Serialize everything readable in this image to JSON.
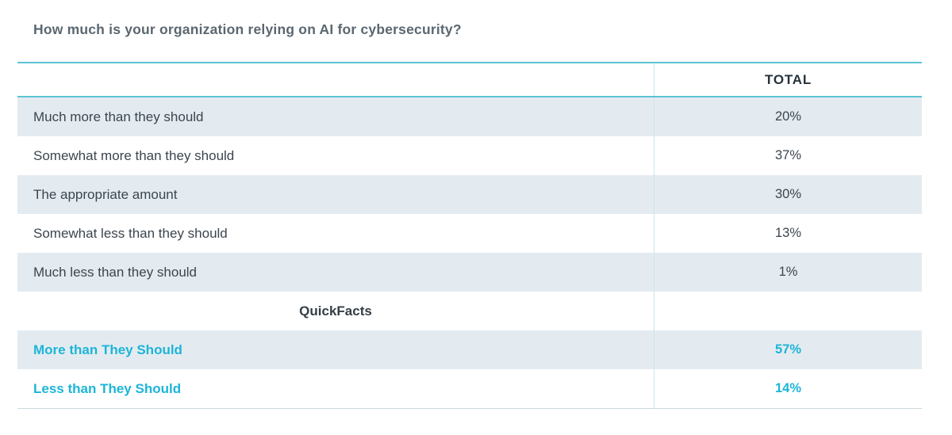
{
  "title": "How much is your organization relying on AI for cybersecurity?",
  "table": {
    "header": {
      "label": "",
      "total": "TOTAL"
    },
    "rows": [
      {
        "label": "Much more than they should",
        "value": "20%",
        "type": "data"
      },
      {
        "label": "Somewhat more than they should",
        "value": "37%",
        "type": "data"
      },
      {
        "label": "The appropriate amount",
        "value": "30%",
        "type": "data"
      },
      {
        "label": "Somewhat less than they should",
        "value": "13%",
        "type": "data"
      },
      {
        "label": "Much less than they should",
        "value": "1%",
        "type": "data"
      },
      {
        "label": "QuickFacts",
        "value": "",
        "type": "section"
      },
      {
        "label": "More than They Should",
        "value": "57%",
        "type": "highlight"
      },
      {
        "label": "Less than They Should",
        "value": "14%",
        "type": "highlight"
      }
    ]
  },
  "colors": {
    "accent_teal_border": "#5cc3d4",
    "column_divider": "#c9e6ee",
    "bottom_border": "#ccd8de",
    "row_shade": "#e4ebf0",
    "highlight_cyan": "#1cb5d8",
    "title_text": "#5b6770",
    "body_text": "#3b454e",
    "header_text": "#26333d"
  },
  "chart_data": {
    "type": "table",
    "title": "How much is your organization relying on AI for cybersecurity?",
    "columns": [
      "",
      "TOTAL"
    ],
    "categories": [
      "Much more than they should",
      "Somewhat more than they should",
      "The appropriate amount",
      "Somewhat less than they should",
      "Much less than they should"
    ],
    "values": [
      20,
      37,
      30,
      13,
      1
    ],
    "quickfacts": {
      "label": "QuickFacts",
      "entries": [
        {
          "label": "More than They Should",
          "value": 57
        },
        {
          "label": "Less than They Should",
          "value": 14
        }
      ]
    },
    "unit": "%"
  }
}
